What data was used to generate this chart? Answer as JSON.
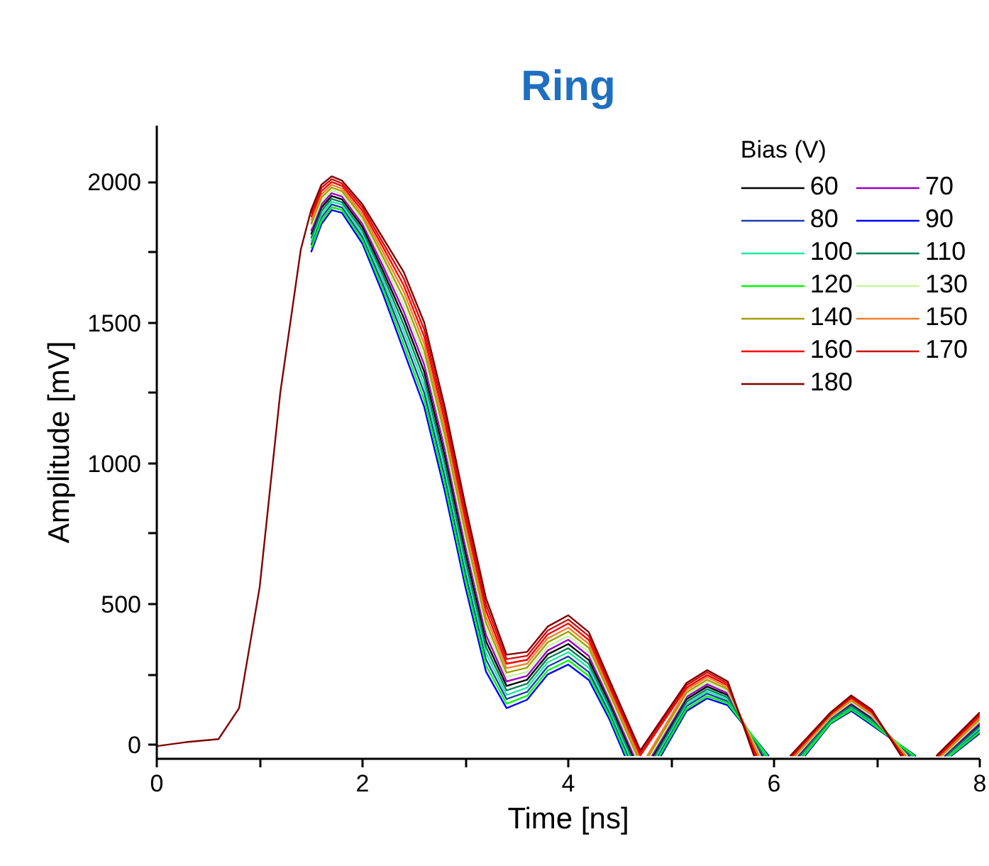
{
  "chart_data": {
    "type": "line",
    "title": "Ring",
    "xlabel": "Time [ns]",
    "ylabel": "Amplitude [mV]",
    "legend_title": "Bias (V)",
    "legend": "top right",
    "xlim": [
      0,
      8
    ],
    "ylim": [
      -50,
      2200
    ],
    "xticks": [
      0,
      {
        "value": 1,
        "label": null
      },
      2,
      {
        "value": 3,
        "label": null
      },
      4,
      {
        "value": 5,
        "label": null
      },
      6,
      {
        "value": 7,
        "label": null
      },
      8
    ],
    "yticks": [
      0,
      {
        "value": 250,
        "label": null
      },
      500,
      {
        "value": 750,
        "label": null
      },
      1000,
      {
        "value": 1250,
        "label": null
      },
      1500,
      {
        "value": 1750,
        "label": null
      },
      2000
    ],
    "series": [
      {
        "name": "60",
        "color": "#000000",
        "x": [
          1.5,
          1.6,
          1.7,
          1.8,
          2.0,
          2.2,
          2.4,
          2.6,
          2.8,
          3.0,
          3.2,
          3.4,
          3.6,
          3.8,
          4.0,
          4.2,
          4.4,
          4.625,
          4.72,
          4.825,
          5.15,
          5.35,
          5.55,
          5.89,
          6.05,
          6.24,
          6.55,
          6.75,
          6.95,
          7.32,
          7.5,
          7.66,
          8.0
        ],
        "values": [
          1813,
          1909,
          1950,
          1938,
          1839,
          1683,
          1517,
          1325,
          1025,
          681,
          368,
          209,
          231,
          321,
          358,
          301,
          149,
          -40,
          null,
          -40,
          162,
          207,
          176,
          -40,
          null,
          -40,
          92,
          143,
          93,
          -40,
          null,
          -40,
          71
        ]
      },
      {
        "name": "70",
        "color": "#9b00c9",
        "x": [
          1.5,
          1.6,
          1.7,
          1.8,
          2.0,
          2.2,
          2.4,
          2.6,
          2.8,
          3.0,
          3.2,
          3.4,
          3.6,
          3.8,
          4.0,
          4.2,
          4.4,
          4.64,
          4.72,
          4.81,
          5.15,
          5.35,
          5.55,
          5.878,
          6.05,
          6.228,
          6.55,
          6.75,
          6.95,
          7.308,
          7.5,
          7.648,
          8.0
        ],
        "values": [
          1825,
          1920,
          1960,
          1948,
          1850,
          1700,
          1540,
          1350,
          1050,
          705,
          390,
          225,
          245,
          335,
          373,
          315,
          160,
          -40,
          null,
          -40,
          170,
          215,
          183,
          -40,
          null,
          -40,
          95,
          148,
          98,
          -40,
          null,
          -40,
          78
        ]
      },
      {
        "name": "80",
        "color": "#1f3bb3",
        "x": [
          1.5,
          1.6,
          1.7,
          1.8,
          2.0,
          2.2,
          2.4,
          2.6,
          2.8,
          3.0,
          3.2,
          3.4,
          3.6,
          3.8,
          4.0,
          4.2,
          4.4,
          4.58,
          4.72,
          4.87,
          5.15,
          5.35,
          5.55,
          5.926,
          6.05,
          6.276,
          6.55,
          6.75,
          6.95,
          7.356,
          7.5,
          7.696,
          8.0
        ],
        "values": [
          1775,
          1873,
          1920,
          1909,
          1803,
          1633,
          1447,
          1250,
          950,
          608,
          303,
          162,
          188,
          278,
          314,
          258,
          113,
          -40,
          null,
          -40,
          137,
          182,
          154,
          -40,
          null,
          -40,
          82,
          129,
          79,
          -40,
          null,
          -40,
          53
        ]
      },
      {
        "name": "90",
        "color": "#0000ff",
        "x": [
          1.5,
          1.6,
          1.7,
          1.8,
          2.0,
          2.2,
          2.4,
          2.6,
          2.8,
          3.0,
          3.2,
          3.4,
          3.6,
          3.8,
          4.0,
          4.2,
          4.4,
          4.55,
          4.72,
          4.9,
          5.15,
          5.35,
          5.55,
          5.95,
          6.05,
          6.3,
          6.55,
          6.75,
          6.95,
          7.38,
          7.5,
          7.72,
          8.0
        ],
        "values": [
          1750,
          1850,
          1900,
          1890,
          1780,
          1600,
          1400,
          1200,
          900,
          560,
          260,
          130,
          160,
          250,
          285,
          230,
          90,
          -40,
          null,
          -40,
          120,
          165,
          140,
          -40,
          null,
          -40,
          75,
          120,
          70,
          -40,
          null,
          -40,
          40
        ]
      },
      {
        "name": "100",
        "color": "#1de9a0",
        "x": [
          1.5,
          1.6,
          1.7,
          1.8,
          2.0,
          2.2,
          2.4,
          2.6,
          2.8,
          3.0,
          3.2,
          3.4,
          3.6,
          3.8,
          4.0,
          4.2,
          4.4,
          4.595,
          4.72,
          4.855,
          5.15,
          5.35,
          5.55,
          5.914,
          6.05,
          6.264,
          6.55,
          6.75,
          6.95,
          7.344,
          7.5,
          7.684,
          8.0
        ],
        "values": [
          1788,
          1885,
          1930,
          1919,
          1815,
          1650,
          1470,
          1275,
          975,
          633,
          325,
          177,
          203,
          293,
          329,
          273,
          125,
          -40,
          null,
          -40,
          145,
          190,
          161,
          -40,
          null,
          -40,
          85,
          134,
          84,
          -40,
          null,
          -40,
          59
        ]
      },
      {
        "name": "110",
        "color": "#0a7f5a",
        "x": [
          1.5,
          1.6,
          1.7,
          1.8,
          2.0,
          2.2,
          2.4,
          2.6,
          2.8,
          3.0,
          3.2,
          3.4,
          3.6,
          3.8,
          4.0,
          4.2,
          4.4,
          4.61,
          4.72,
          4.84,
          5.15,
          5.35,
          5.55,
          5.902,
          6.05,
          6.252,
          6.55,
          6.75,
          6.95,
          7.332,
          7.5,
          7.672,
          8.0
        ],
        "values": [
          1800,
          1897,
          1940,
          1928,
          1827,
          1667,
          1493,
          1300,
          1000,
          657,
          347,
          193,
          217,
          307,
          343,
          287,
          137,
          -40,
          null,
          -40,
          153,
          198,
          168,
          -40,
          null,
          -40,
          88,
          138,
          88,
          -40,
          null,
          -40,
          65
        ]
      },
      {
        "name": "120",
        "color": "#00ff00",
        "x": [
          1.5,
          1.6,
          1.7,
          1.8,
          2.0,
          2.2,
          2.4,
          2.6,
          2.8,
          3.0,
          3.2,
          3.4,
          3.6,
          3.8,
          4.0,
          4.2,
          4.4,
          4.565,
          4.72,
          4.885,
          5.15,
          5.35,
          5.55,
          5.938,
          6.05,
          6.288,
          6.55,
          6.75,
          6.95,
          7.368,
          7.5,
          7.708,
          8.0
        ],
        "values": [
          1763,
          1862,
          1910,
          1900,
          1792,
          1617,
          1423,
          1225,
          925,
          584,
          282,
          146,
          174,
          264,
          300,
          244,
          102,
          -40,
          null,
          -40,
          128,
          173,
          147,
          -40,
          null,
          -40,
          78,
          125,
          75,
          -40,
          null,
          -40,
          46
        ]
      },
      {
        "name": "130",
        "color": "#c8f5a0",
        "x": [
          1.5,
          1.6,
          1.7,
          1.8,
          2.0,
          2.2,
          2.4,
          2.6,
          2.8,
          3.0,
          3.2,
          3.4,
          3.6,
          3.8,
          4.0,
          4.2,
          4.4,
          4.655,
          4.72,
          4.795,
          5.15,
          5.35,
          5.55,
          5.866,
          6.05,
          6.216,
          6.55,
          6.75,
          6.95,
          7.296,
          7.5,
          7.636,
          8.0
        ],
        "values": [
          1838,
          1932,
          1970,
          1957,
          1862,
          1717,
          1563,
          1375,
          1075,
          729,
          412,
          241,
          259,
          349,
          387,
          329,
          172,
          -40,
          null,
          -40,
          178,
          223,
          190,
          -40,
          null,
          -40,
          98,
          152,
          102,
          -40,
          null,
          -40,
          84
        ]
      },
      {
        "name": "140",
        "color": "#a0a000",
        "x": [
          1.5,
          1.6,
          1.7,
          1.8,
          2.0,
          2.2,
          2.4,
          2.6,
          2.8,
          3.0,
          3.2,
          3.4,
          3.6,
          3.8,
          4.0,
          4.2,
          4.4,
          4.67,
          4.72,
          4.78,
          5.15,
          5.35,
          5.55,
          5.854,
          6.05,
          6.204,
          6.55,
          6.75,
          6.95,
          7.284,
          7.5,
          7.624,
          8.0
        ],
        "values": [
          1850,
          1944,
          1980,
          1967,
          1874,
          1733,
          1587,
          1400,
          1100,
          754,
          434,
          256,
          274,
          364,
          402,
          344,
          184,
          -40,
          null,
          -40,
          186,
          231,
          197,
          -40,
          null,
          -40,
          101,
          157,
          107,
          -40,
          null,
          -40,
          90
        ]
      },
      {
        "name": "150",
        "color": "#f08030",
        "x": [
          1.5,
          1.6,
          1.7,
          1.8,
          2.0,
          2.2,
          2.4,
          2.6,
          2.8,
          3.0,
          3.2,
          3.4,
          3.6,
          3.8,
          4.0,
          4.2,
          4.4,
          4.685,
          4.725,
          4.765,
          5.15,
          5.35,
          5.55,
          5.842,
          6.05,
          6.192,
          6.55,
          6.75,
          6.95,
          7.272,
          7.5,
          7.612,
          8.0
        ],
        "values": [
          1863,
          1955,
          1990,
          1976,
          1885,
          1750,
          1610,
          1425,
          1125,
          778,
          455,
          272,
          288,
          378,
          416,
          358,
          195,
          -40,
          null,
          -40,
          195,
          240,
          204,
          -40,
          null,
          -40,
          105,
          161,
          111,
          -40,
          null,
          -40,
          96
        ]
      },
      {
        "name": "160",
        "color": "#ff0000",
        "x": [
          1.5,
          1.6,
          1.7,
          1.8,
          2.0,
          2.2,
          2.4,
          2.6,
          2.8,
          3.0,
          3.2,
          3.4,
          3.6,
          3.8,
          4.0,
          4.2,
          4.4,
          4.7,
          5.15,
          5.35,
          5.55,
          5.83,
          6.05,
          6.18,
          6.55,
          6.75,
          6.95,
          7.26,
          7.5,
          7.6,
          8.0
        ],
        "values": [
          1875,
          1967,
          2000,
          1986,
          1897,
          1767,
          1633,
          1450,
          1150,
          802,
          477,
          288,
          302,
          392,
          431,
          372,
          207,
          -38,
          203,
          248,
          211,
          -40,
          null,
          -40,
          108,
          166,
          116,
          -40,
          null,
          -40,
          103
        ]
      },
      {
        "name": "170",
        "color": "#cc1010",
        "x": [
          1.5,
          1.6,
          1.7,
          1.8,
          2.0,
          2.2,
          2.4,
          2.6,
          2.8,
          3.0,
          3.2,
          3.4,
          3.6,
          3.8,
          4.0,
          4.2,
          4.4,
          4.7,
          5.15,
          5.35,
          5.55,
          5.818,
          6.05,
          6.168,
          6.55,
          6.75,
          6.95,
          7.248,
          7.5,
          7.588,
          8.0
        ],
        "values": [
          1888,
          1979,
          2010,
          1995,
          1909,
          1783,
          1657,
          1475,
          1175,
          826,
          499,
          304,
          316,
          406,
          445,
          386,
          219,
          -28,
          212,
          257,
          218,
          -40,
          null,
          -40,
          111,
          170,
          121,
          -40,
          null,
          -40,
          109
        ]
      },
      {
        "name": "180",
        "color": "#800000",
        "x": [
          0,
          0.3,
          0.6,
          0.8,
          1.0,
          1.2,
          1.4,
          1.5,
          1.6,
          1.7,
          1.8,
          2.0,
          2.2,
          2.4,
          2.6,
          2.8,
          3.0,
          3.2,
          3.4,
          3.6,
          3.8,
          4.0,
          4.2,
          4.4,
          4.7,
          5.15,
          5.35,
          5.55,
          5.806,
          6.05,
          6.156,
          6.55,
          6.75,
          6.95,
          7.236,
          7.5,
          7.576,
          8.0
        ],
        "values": [
          -5,
          10,
          20,
          130,
          560,
          1250,
          1760,
          1900,
          1990,
          2020,
          2005,
          1920,
          1800,
          1680,
          1500,
          1200,
          850,
          520,
          320,
          330,
          420,
          460,
          400,
          230,
          -20,
          220,
          265,
          225,
          -40,
          null,
          -40,
          115,
          175,
          125,
          -40,
          null,
          -40,
          115
        ]
      }
    ]
  }
}
